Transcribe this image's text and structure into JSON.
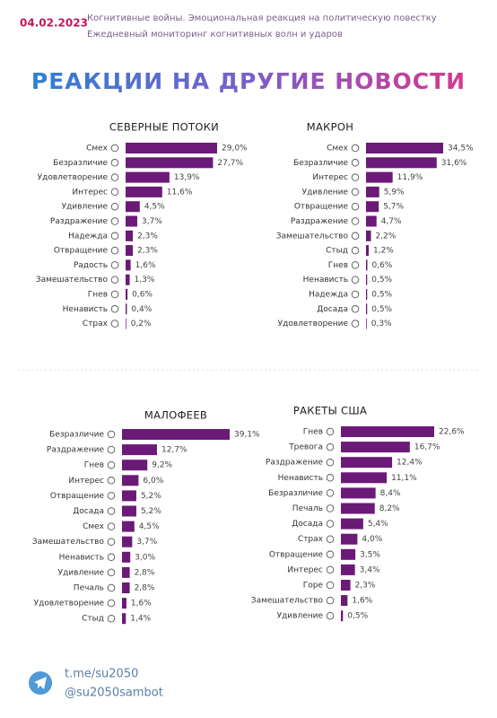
{
  "header": {
    "date": "04.02.2023",
    "line1": "Когнитивные войны. Эмоциональная реакция на политическую повестку",
    "line2": "Ежедневный мониторинг когнитивных волн и ударов",
    "title": "РЕАКЦИИ НА ДРУГИЕ НОВОСТИ"
  },
  "footer": {
    "link1": "t.me/su2050",
    "link2": "@su2050sambot"
  },
  "chart_data": [
    {
      "type": "bar",
      "orientation": "horizontal",
      "title": "СЕВЕРНЫЕ ПОТОКИ",
      "color": "#6b1a78",
      "categories": [
        "Смех",
        "Безразличие",
        "Удовлетворение",
        "Интерес",
        "Удивление",
        "Раздражение",
        "Надежда",
        "Отвращение",
        "Радость",
        "Замешательство",
        "Гнев",
        "Ненависть",
        "Страх"
      ],
      "values": [
        29.0,
        27.7,
        13.9,
        11.6,
        4.5,
        3.7,
        2.3,
        2.3,
        1.6,
        1.3,
        0.6,
        0.4,
        0.2
      ],
      "value_labels": [
        "29,0%",
        "27,7%",
        "13,9%",
        "11,6%",
        "4,5%",
        "3,7%",
        "2,3%",
        "2,3%",
        "1,6%",
        "1,3%",
        "0,6%",
        "0,4%",
        "0,2%"
      ]
    },
    {
      "type": "bar",
      "orientation": "horizontal",
      "title": "МАКРОН",
      "color": "#6b1a78",
      "categories": [
        "Смех",
        "Безразличие",
        "Интерес",
        "Удивление",
        "Отвращение",
        "Раздражение",
        "Замешательство",
        "Стыд",
        "Гнев",
        "Ненависть",
        "Надежда",
        "Досада",
        "Удовлетворение"
      ],
      "values": [
        34.5,
        31.6,
        11.9,
        5.9,
        5.7,
        4.7,
        2.2,
        1.2,
        0.6,
        0.5,
        0.5,
        0.5,
        0.3
      ],
      "value_labels": [
        "34,5%",
        "31,6%",
        "11,9%",
        "5,9%",
        "5,7%",
        "4,7%",
        "2,2%",
        "1,2%",
        "0,6%",
        "0,5%",
        "0,5%",
        "0,5%",
        "0,3%"
      ]
    },
    {
      "type": "bar",
      "orientation": "horizontal",
      "title": "МАЛОФЕЕВ",
      "color": "#6b1a78",
      "categories": [
        "Безразличие",
        "Раздражение",
        "Гнев",
        "Интерес",
        "Отвращение",
        "Досада",
        "Смех",
        "Замешательство",
        "Ненависть",
        "Удивление",
        "Печаль",
        "Удовлетворение",
        "Стыд"
      ],
      "values": [
        39.1,
        12.7,
        9.2,
        6.0,
        5.2,
        5.2,
        4.5,
        3.7,
        3.0,
        2.8,
        2.8,
        1.6,
        1.4
      ],
      "value_labels": [
        "39,1%",
        "12,7%",
        "9,2%",
        "6,0%",
        "5,2%",
        "5,2%",
        "4,5%",
        "3,7%",
        "3,0%",
        "2,8%",
        "2,8%",
        "1,6%",
        "1,4%"
      ]
    },
    {
      "type": "bar",
      "orientation": "horizontal",
      "title": "РАКЕТЫ США",
      "color": "#6b1a78",
      "categories": [
        "Гнев",
        "Тревога",
        "Раздражение",
        "Ненависть",
        "Безразличие",
        "Печаль",
        "Досада",
        "Страх",
        "Отвращение",
        "Интерес",
        "Горе",
        "Замешательство",
        "Удивление"
      ],
      "values": [
        22.6,
        16.7,
        12.4,
        11.1,
        8.4,
        8.2,
        5.4,
        4.0,
        3.5,
        3.4,
        2.3,
        1.6,
        0.5
      ],
      "value_labels": [
        "22,6%",
        "16,7%",
        "12,4%",
        "11,1%",
        "8,4%",
        "8,2%",
        "5,4%",
        "4,0%",
        "3,5%",
        "3,4%",
        "2,3%",
        "1,6%",
        "0,5%"
      ]
    }
  ]
}
